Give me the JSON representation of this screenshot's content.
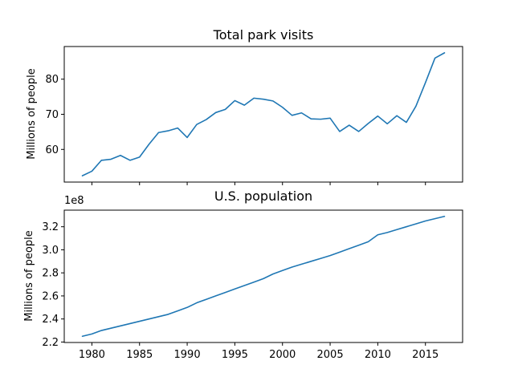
{
  "chart_data": [
    {
      "type": "line",
      "title": "Total park visits",
      "xlabel": "",
      "ylabel": "Millions of people",
      "x": [
        1979,
        1980,
        1981,
        1982,
        1983,
        1984,
        1985,
        1986,
        1987,
        1988,
        1989,
        1990,
        1991,
        1992,
        1993,
        1994,
        1995,
        1996,
        1997,
        1998,
        1999,
        2000,
        2001,
        2002,
        2003,
        2004,
        2005,
        2006,
        2007,
        2008,
        2009,
        2010,
        2011,
        2012,
        2013,
        2014,
        2015,
        2016,
        2017
      ],
      "series": [
        {
          "values": [
            52.5,
            53.8,
            56.9,
            57.2,
            58.3,
            56.9,
            57.8,
            61.5,
            64.8,
            65.3,
            66.1,
            63.4,
            67.1,
            68.5,
            70.5,
            71.4,
            73.9,
            72.6,
            74.6,
            74.3,
            73.8,
            72.0,
            69.7,
            70.4,
            68.7,
            68.6,
            68.9,
            65.1,
            66.9,
            65.1,
            67.4,
            69.5,
            67.3,
            69.6,
            67.7,
            72.3,
            79.0,
            86.0,
            87.5
          ]
        }
      ],
      "xlim": [
        1977.1,
        2018.9
      ],
      "ylim": [
        50.7,
        89.3
      ],
      "yticks": [
        60,
        70,
        80
      ],
      "ytick_labels": [
        "60",
        "70",
        "80"
      ],
      "xticks": [
        1980,
        1985,
        1990,
        1995,
        2000,
        2005,
        2010,
        2015
      ],
      "xtick_labels_shown": false,
      "grid": false
    },
    {
      "type": "line",
      "title": "U.S. population",
      "xlabel": "",
      "ylabel": "Millions of people",
      "y_offset_text": "1e8",
      "x": [
        1979,
        1980,
        1981,
        1982,
        1983,
        1984,
        1985,
        1986,
        1987,
        1988,
        1989,
        1990,
        1991,
        1992,
        1993,
        1994,
        1995,
        1996,
        1997,
        1998,
        1999,
        2000,
        2001,
        2002,
        2003,
        2004,
        2005,
        2006,
        2007,
        2008,
        2009,
        2010,
        2011,
        2012,
        2013,
        2014,
        2015,
        2016,
        2017
      ],
      "series": [
        {
          "values": [
            2.25,
            2.27,
            2.3,
            2.32,
            2.34,
            2.36,
            2.38,
            2.4,
            2.42,
            2.44,
            2.47,
            2.5,
            2.54,
            2.57,
            2.6,
            2.63,
            2.66,
            2.69,
            2.72,
            2.75,
            2.79,
            2.82,
            2.85,
            2.875,
            2.9,
            2.925,
            2.95,
            2.98,
            3.01,
            3.04,
            3.07,
            3.13,
            3.15,
            3.175,
            3.2,
            3.225,
            3.25,
            3.27,
            3.29
          ]
        }
      ],
      "xlim": [
        1977.1,
        2018.9
      ],
      "ylim": [
        2.196,
        3.344
      ],
      "yticks": [
        2.2,
        2.4,
        2.6,
        2.8,
        3.0,
        3.2
      ],
      "ytick_labels": [
        "2.2",
        "2.4",
        "2.6",
        "2.8",
        "3.0",
        "3.2"
      ],
      "xticks": [
        1980,
        1985,
        1990,
        1995,
        2000,
        2005,
        2010,
        2015
      ],
      "xtick_labels": [
        "1980",
        "1985",
        "1990",
        "1995",
        "2000",
        "2005",
        "2010",
        "2015"
      ],
      "grid": false
    }
  ],
  "colors": {
    "series": "#1f77b4",
    "axes": "#000000",
    "background": "#ffffff"
  }
}
